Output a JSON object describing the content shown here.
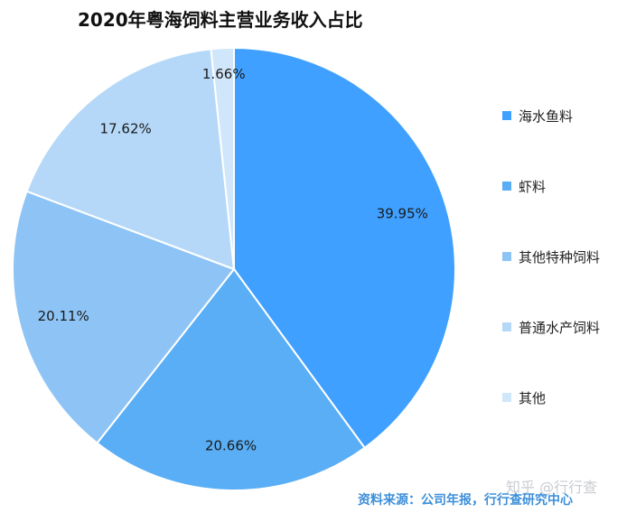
{
  "chart_data": {
    "type": "pie",
    "title": "2020年粤海饲料主营业务收入占比",
    "labels": [
      "海水鱼料",
      "虾料",
      "其他特种饲料",
      "普通水产饲料",
      "其他"
    ],
    "values": [
      39.95,
      20.66,
      20.11,
      17.62,
      1.66
    ],
    "value_labels": [
      "39.95%",
      "20.66%",
      "20.11%",
      "17.62%",
      "1.66%"
    ],
    "colors": [
      "#40a0ff",
      "#5aaef5",
      "#8ec4f5",
      "#b5d8f8",
      "#d0e6fb"
    ],
    "start_angle": "12 o'clock",
    "direction": "clockwise",
    "legend_position": "right"
  },
  "source_text": "资料来源：公司年报，行行查研究中心",
  "watermark_text": "知乎 @行行查"
}
